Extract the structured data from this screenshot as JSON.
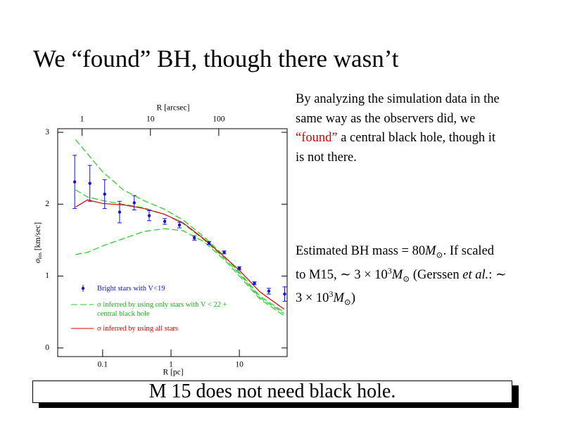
{
  "title": "We “found” BH, though there wasn’t",
  "paragraph1": [
    "By analyzing the simulation data in the same way as the observers did, we ",
    "“found”",
    " a central black hole, though it is not there."
  ],
  "paragraph2": [
    "Estimated BH mass = 80",
    "M",
    "⊙",
    ". If scaled to M15, ∼ 3 × 10",
    "3",
    "M",
    "⊙",
    " (Gerssen ",
    "et al.",
    ": ∼ 3 × 10",
    "3",
    "M",
    "⊙",
    ")"
  ],
  "conclusion": "M 15 does not need black hole.",
  "chart_data": {
    "type": "line",
    "x_label": "R [pc]",
    "x2_label": "R [arcsec]",
    "y_label": [
      "σ",
      "los",
      " [km/sec]"
    ],
    "log_x": true,
    "xlim": [
      0.022,
      50
    ],
    "xticks": [
      0.1,
      1,
      10
    ],
    "x2lim": [
      0.44,
      1000
    ],
    "x2ticks": [
      1,
      10,
      100
    ],
    "ylim": [
      -0.12,
      3.05
    ],
    "yticks": [
      0,
      1,
      2,
      3
    ],
    "points": {
      "name": "Bright stars with V<19",
      "color": "#1414d2",
      "x": [
        0.039,
        0.065,
        0.107,
        0.177,
        0.29,
        0.48,
        0.81,
        1.33,
        2.2,
        3.6,
        6.0,
        10,
        16.6,
        27,
        46
      ],
      "values": [
        2.31,
        2.29,
        2.14,
        1.89,
        2.02,
        1.84,
        1.76,
        1.71,
        1.53,
        1.46,
        1.33,
        1.11,
        0.9,
        0.79,
        0.75
      ],
      "errors": [
        0.37,
        0.25,
        0.2,
        0.15,
        0.1,
        0.07,
        0.04,
        0.04,
        0.03,
        0.02,
        0.02,
        0.02,
        0.02,
        0.04,
        0.1
      ]
    },
    "x": [
      0.04,
      0.06,
      0.1,
      0.2,
      0.4,
      0.8,
      1.5,
      3,
      6,
      10,
      20,
      45
    ],
    "series": [
      {
        "name": "σ inferred by using only stars with V < 22 + central black hole",
        "color": "#22cc22",
        "dashed": true,
        "values": [
          2.2,
          2.1,
          2.05,
          2.0,
          1.95,
          1.86,
          1.73,
          1.51,
          1.25,
          1.03,
          0.7,
          0.48
        ],
        "upper": [
          2.9,
          2.7,
          2.45,
          2.2,
          2.05,
          1.93,
          1.78,
          1.55,
          1.28,
          1.05,
          0.72,
          0.5
        ],
        "lower": [
          1.3,
          1.33,
          1.42,
          1.52,
          1.62,
          1.66,
          1.63,
          1.48,
          1.23,
          1.0,
          0.68,
          0.45
        ]
      },
      {
        "name": "σ inferred by using all stars",
        "color": "#e00000",
        "dashed": false,
        "values": [
          1.96,
          2.06,
          2.01,
          1.99,
          1.94,
          1.86,
          1.74,
          1.52,
          1.27,
          1.08,
          0.78,
          0.54
        ]
      }
    ]
  }
}
